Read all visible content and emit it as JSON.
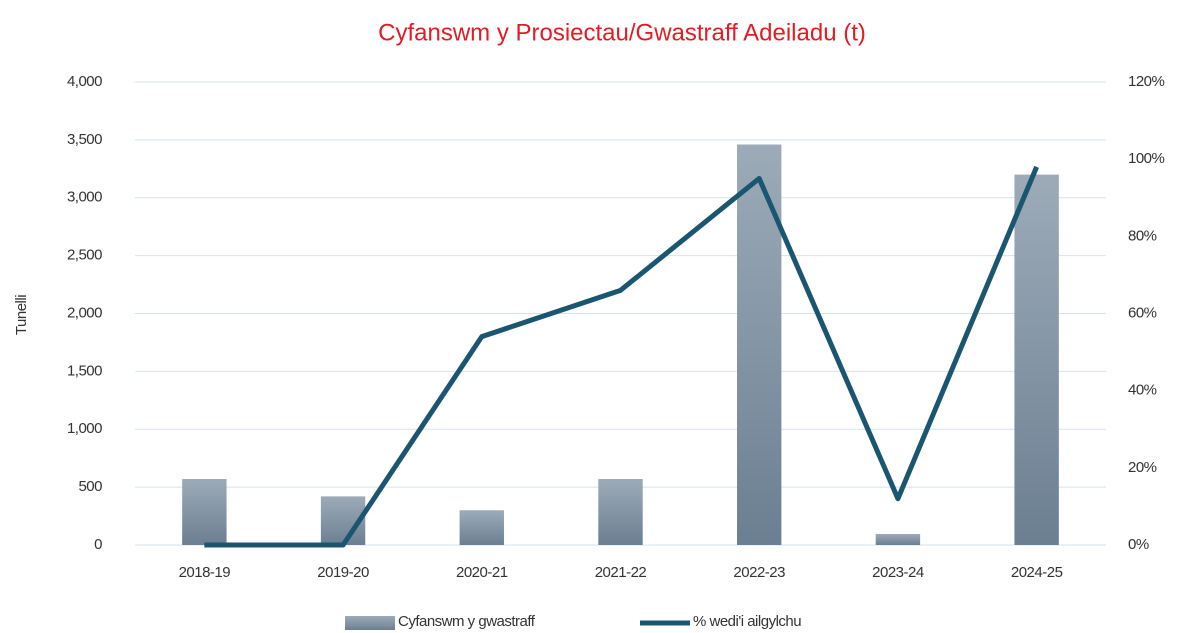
{
  "chart_data": {
    "type": "bar",
    "title": "Cyfanswm y Prosiectau/Gwastraff Adeiladu (t)",
    "ylabel": "Tunelli",
    "categories": [
      "2018-19",
      "2019-20",
      "2020-21",
      "2021-22",
      "2022-23",
      "2023-24",
      "2024-25"
    ],
    "series": [
      {
        "name": "Cyfanswm y gwastraff",
        "type": "bar",
        "color": "#7d8fa0",
        "values": [
          570,
          420,
          300,
          570,
          3460,
          95,
          3200
        ]
      },
      {
        "name": "% wedi'i ailgylchu",
        "type": "line",
        "axis": "y2",
        "color": "#1b5670",
        "values": [
          0,
          0,
          54,
          66,
          95,
          12,
          98
        ]
      }
    ],
    "ylim": [
      0,
      4000
    ],
    "yticks": [
      0,
      500,
      {
        "value": 1000,
        "label": "1,000"
      },
      {
        "value": 1500,
        "label": "1,500"
      },
      {
        "value": 2000,
        "label": "2,000"
      },
      {
        "value": 2500,
        "label": "2,500"
      },
      {
        "value": 3000,
        "label": "3,000"
      },
      {
        "value": 3500,
        "label": "3,500"
      },
      {
        "value": 4000,
        "label": "4,000"
      }
    ],
    "y2lim": [
      0,
      120
    ],
    "y2ticks": [
      {
        "value": 0,
        "label": "0%"
      },
      {
        "value": 20,
        "label": "20%"
      },
      {
        "value": 40,
        "label": "40%"
      },
      {
        "value": 60,
        "label": "60%"
      },
      {
        "value": 80,
        "label": "80%"
      },
      {
        "value": 100,
        "label": "100%"
      },
      {
        "value": 120,
        "label": "120%"
      }
    ],
    "grid": true,
    "legend": "bottom"
  }
}
